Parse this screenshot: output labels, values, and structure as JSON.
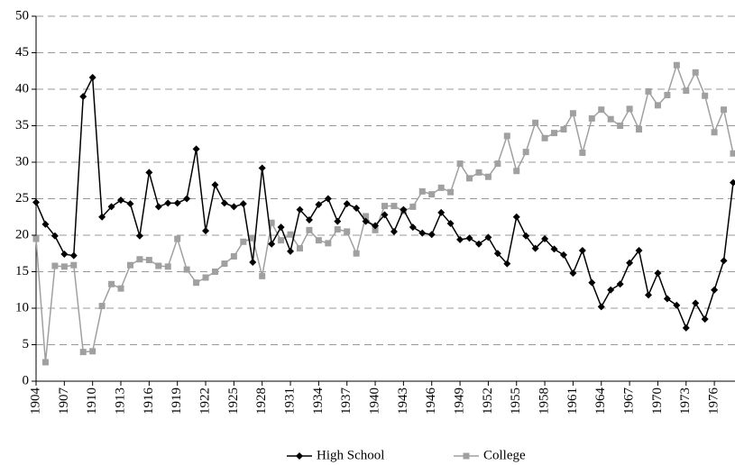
{
  "chart_data": {
    "type": "line",
    "x": [
      1904,
      1905,
      1906,
      1907,
      1908,
      1909,
      1910,
      1911,
      1912,
      1913,
      1914,
      1915,
      1916,
      1917,
      1918,
      1919,
      1920,
      1921,
      1922,
      1923,
      1924,
      1925,
      1926,
      1927,
      1928,
      1929,
      1930,
      1931,
      1932,
      1933,
      1934,
      1935,
      1936,
      1937,
      1938,
      1939,
      1940,
      1941,
      1942,
      1943,
      1944,
      1945,
      1946,
      1947,
      1948,
      1949,
      1950,
      1951,
      1952,
      1953,
      1954,
      1955,
      1956,
      1957,
      1958,
      1959,
      1960,
      1961,
      1962,
      1963,
      1964,
      1965,
      1966,
      1967,
      1968,
      1969,
      1970,
      1971,
      1972,
      1973,
      1974,
      1975,
      1976,
      1977,
      1978
    ],
    "series": [
      {
        "name": "High School",
        "color": "#000000",
        "marker": "diamond",
        "values": [
          24.5,
          21.5,
          19.9,
          17.4,
          17.2,
          39.0,
          41.6,
          22.5,
          23.9,
          24.8,
          24.3,
          19.9,
          28.6,
          23.9,
          24.4,
          24.4,
          25.0,
          31.8,
          20.6,
          26.9,
          24.4,
          23.9,
          24.3,
          16.3,
          29.2,
          18.8,
          21.1,
          17.8,
          23.5,
          22.1,
          24.2,
          25.0,
          21.9,
          24.3,
          23.7,
          21.9,
          21.3,
          22.8,
          20.5,
          23.5,
          21.1,
          20.3,
          20.1,
          23.1,
          21.6,
          19.4,
          19.6,
          18.8,
          19.7,
          17.5,
          16.1,
          22.5,
          19.9,
          18.2,
          19.5,
          18.1,
          17.3,
          14.8,
          17.9,
          13.5,
          10.2,
          12.5,
          13.3,
          16.2,
          17.9,
          11.8,
          14.8,
          11.3,
          10.4,
          7.3,
          10.7,
          8.5,
          12.5,
          16.5,
          27.2
        ]
      },
      {
        "name": "College",
        "color": "#a0a0a0",
        "marker": "square",
        "values": [
          19.5,
          2.6,
          15.8,
          15.7,
          15.9,
          4.0,
          4.1,
          10.3,
          13.3,
          12.7,
          15.9,
          16.7,
          16.6,
          15.8,
          15.7,
          19.5,
          15.3,
          13.5,
          14.2,
          15.0,
          16.1,
          17.1,
          19.1,
          19.6,
          14.4,
          21.7,
          19.3,
          20.1,
          18.2,
          20.7,
          19.3,
          18.9,
          20.8,
          20.5,
          17.5,
          22.6,
          20.7,
          24.0,
          24.0,
          23.3,
          23.9,
          26.0,
          25.6,
          26.5,
          25.9,
          29.8,
          27.8,
          28.6,
          28.0,
          29.8,
          33.6,
          28.8,
          31.4,
          35.4,
          33.3,
          34.0,
          34.5,
          36.7,
          31.3,
          36.0,
          37.2,
          35.9,
          35.0,
          37.3,
          34.5,
          39.7,
          37.8,
          39.2,
          43.3,
          39.8,
          42.3,
          39.1,
          34.1,
          37.2,
          31.2
        ]
      }
    ],
    "xlim": [
      1904,
      1978
    ],
    "xticks": [
      1904,
      1907,
      1910,
      1913,
      1916,
      1919,
      1922,
      1925,
      1928,
      1931,
      1934,
      1937,
      1940,
      1943,
      1946,
      1949,
      1952,
      1955,
      1958,
      1961,
      1964,
      1967,
      1970,
      1973,
      1976
    ],
    "ylim": [
      0,
      50
    ],
    "yticks": [
      0,
      5,
      10,
      15,
      20,
      25,
      30,
      35,
      40,
      45,
      50
    ],
    "grid": true,
    "legend": "bottom"
  }
}
